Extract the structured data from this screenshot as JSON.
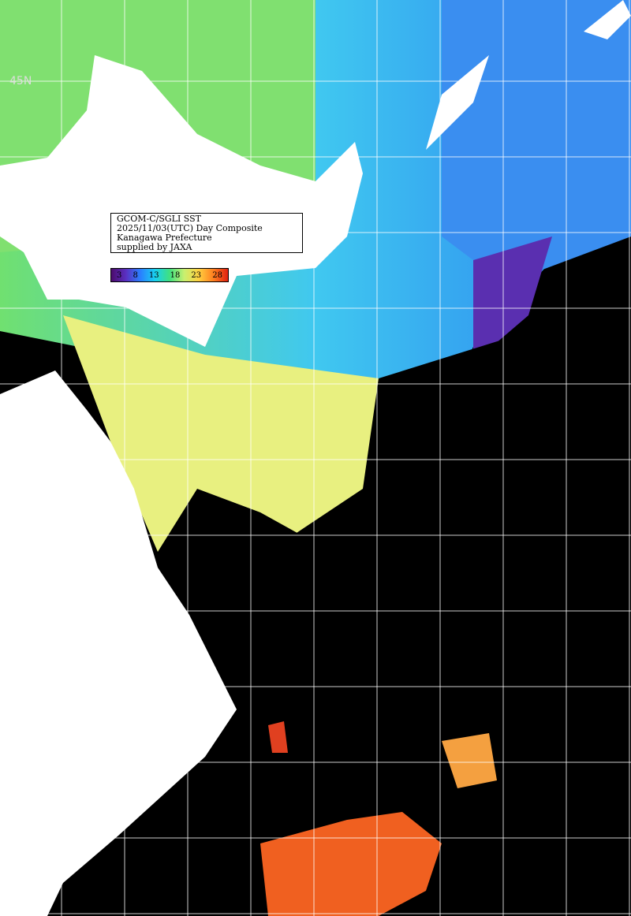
{
  "caption": {
    "title": "GCOM-C/SGLI SST",
    "date": "2025/11/03(UTC) Day Composite",
    "prefecture": "Kanagawa Prefecture",
    "credit": "supplied by JAXA"
  },
  "colorbar": {
    "labels": [
      "3",
      "8",
      "13",
      "18",
      "23",
      "28"
    ]
  },
  "latitude_label": "45N"
}
